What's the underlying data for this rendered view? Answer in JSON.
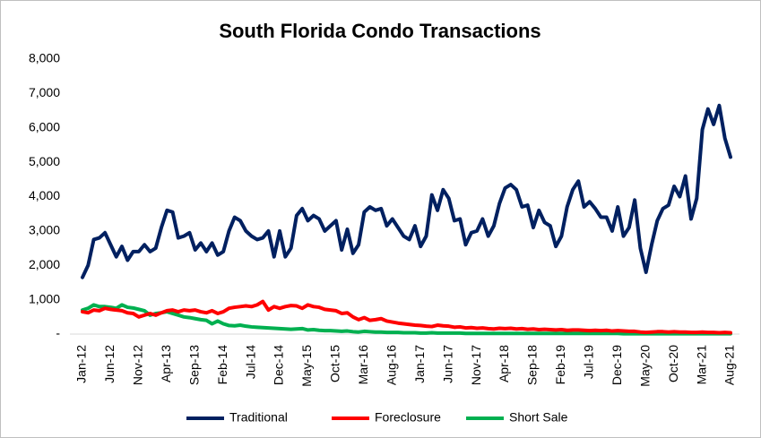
{
  "chart_data": {
    "type": "line",
    "title": "South Florida Condo Transactions",
    "categories": [
      "Jan-12",
      null,
      null,
      null,
      null,
      "Jun-12",
      null,
      null,
      null,
      null,
      "Nov-12",
      null,
      null,
      null,
      null,
      "Apr-13",
      null,
      null,
      null,
      null,
      "Sep-13",
      null,
      null,
      null,
      null,
      "Feb-14",
      null,
      null,
      null,
      null,
      "Jul-14",
      null,
      null,
      null,
      null,
      "Dec-14",
      null,
      null,
      null,
      null,
      "May-15",
      null,
      null,
      null,
      null,
      "Oct-15",
      null,
      null,
      null,
      null,
      "Mar-16",
      null,
      null,
      null,
      null,
      "Aug-16",
      null,
      null,
      null,
      null,
      "Jan-17",
      null,
      null,
      null,
      null,
      "Jun-17",
      null,
      null,
      null,
      null,
      "Nov-17",
      null,
      null,
      null,
      null,
      "Apr-18",
      null,
      null,
      null,
      null,
      "Sep-18",
      null,
      null,
      null,
      null,
      "Feb-19",
      null,
      null,
      null,
      null,
      "Jul-19",
      null,
      null,
      null,
      null,
      "Dec-19",
      null,
      null,
      null,
      null,
      "May-20",
      null,
      null,
      null,
      null,
      "Oct-20",
      null,
      null,
      null,
      null,
      "Mar-21",
      null,
      null,
      null,
      null,
      "Aug-21"
    ],
    "series": [
      {
        "name": "Traditional",
        "color": "#002060",
        "values": [
          1650,
          2000,
          2750,
          2800,
          2950,
          2600,
          2250,
          2550,
          2150,
          2400,
          2400,
          2600,
          2400,
          2500,
          3100,
          3600,
          3550,
          2800,
          2850,
          2950,
          2450,
          2650,
          2400,
          2650,
          2300,
          2400,
          3000,
          3400,
          3300,
          3000,
          2850,
          2750,
          2800,
          3000,
          2250,
          3000,
          2250,
          2500,
          3450,
          3650,
          3300,
          3450,
          3350,
          3000,
          3150,
          3300,
          2450,
          3050,
          2350,
          2600,
          3550,
          3700,
          3600,
          3650,
          3150,
          3350,
          3100,
          2850,
          2750,
          3150,
          2550,
          2850,
          4050,
          3600,
          4200,
          3950,
          3300,
          3350,
          2600,
          2950,
          3000,
          3350,
          2850,
          3150,
          3800,
          4250,
          4350,
          4200,
          3700,
          3750,
          3100,
          3600,
          3250,
          3150,
          2550,
          2850,
          3700,
          4200,
          4450,
          3700,
          3850,
          3650,
          3400,
          3400,
          3000,
          3700,
          2850,
          3100,
          3900,
          2500,
          1800,
          2600,
          3300,
          3650,
          3750,
          4300,
          4000,
          4600,
          3350,
          3950,
          5950,
          6550,
          6100,
          6650,
          5700,
          5150
        ]
      },
      {
        "name": "Foreclosure",
        "color": "#ff0000",
        "values": [
          650,
          620,
          700,
          680,
          750,
          720,
          700,
          680,
          620,
          600,
          500,
          550,
          600,
          550,
          620,
          680,
          700,
          650,
          700,
          680,
          700,
          650,
          620,
          680,
          600,
          650,
          750,
          780,
          800,
          820,
          800,
          850,
          950,
          700,
          800,
          750,
          800,
          830,
          820,
          750,
          850,
          800,
          780,
          720,
          700,
          680,
          600,
          620,
          500,
          420,
          480,
          400,
          420,
          450,
          380,
          350,
          320,
          300,
          280,
          260,
          250,
          230,
          220,
          260,
          240,
          230,
          200,
          210,
          180,
          190,
          170,
          180,
          160,
          150,
          170,
          160,
          170,
          150,
          160,
          140,
          150,
          130,
          140,
          130,
          120,
          130,
          110,
          120,
          120,
          110,
          100,
          110,
          100,
          110,
          90,
          100,
          90,
          80,
          80,
          60,
          50,
          60,
          70,
          70,
          60,
          70,
          60,
          60,
          50,
          50,
          60,
          50,
          50,
          40,
          50,
          40
        ]
      },
      {
        "name": "Short Sale",
        "color": "#00b050",
        "values": [
          700,
          750,
          850,
          800,
          800,
          780,
          750,
          850,
          780,
          760,
          720,
          680,
          550,
          600,
          620,
          650,
          600,
          550,
          500,
          480,
          450,
          420,
          400,
          300,
          380,
          300,
          250,
          240,
          260,
          230,
          210,
          200,
          190,
          180,
          170,
          160,
          150,
          140,
          150,
          160,
          120,
          130,
          110,
          100,
          100,
          90,
          80,
          90,
          70,
          60,
          80,
          70,
          60,
          60,
          50,
          50,
          50,
          40,
          40,
          40,
          30,
          30,
          40,
          30,
          30,
          30,
          30,
          30,
          20,
          20,
          20,
          20,
          20,
          20,
          20,
          20,
          20,
          20,
          20,
          20,
          20,
          20,
          20,
          20,
          20,
          20,
          20,
          20,
          20,
          20,
          20,
          20,
          20,
          20,
          20,
          20,
          10,
          10,
          10,
          10,
          10,
          10,
          10,
          10,
          10,
          10,
          10,
          10,
          10,
          10,
          10,
          10,
          10,
          10,
          10,
          10
        ]
      }
    ],
    "ylim": [
      0,
      8000
    ],
    "yticks": [
      {
        "value": 0,
        "label": "-"
      },
      {
        "value": 1000,
        "label": "1,000"
      },
      {
        "value": 2000,
        "label": "2,000"
      },
      {
        "value": 3000,
        "label": "3,000"
      },
      {
        "value": 4000,
        "label": "4,000"
      },
      {
        "value": 5000,
        "label": "5,000"
      },
      {
        "value": 6000,
        "label": "6,000"
      },
      {
        "value": 7000,
        "label": "7,000"
      },
      {
        "value": 8000,
        "label": "8,000"
      }
    ],
    "grid": false,
    "legend": "bottom"
  }
}
